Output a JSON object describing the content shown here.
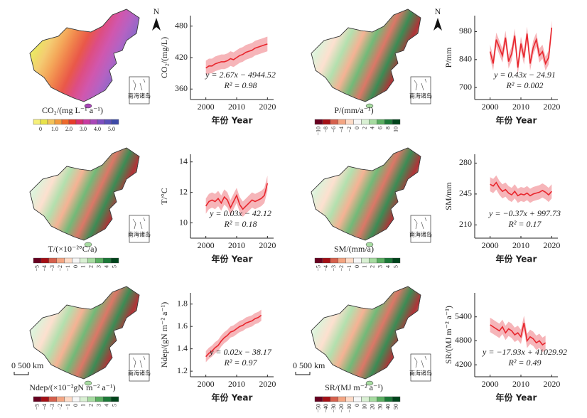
{
  "chart_data": [
    {
      "type": "line",
      "ylabel": "CO₂/(mg/L)",
      "xlabel": "年份 Year",
      "equation": "y = 2.67x − 4944.52",
      "r2": "R² = 0.98",
      "x": [
        2000,
        2001,
        2002,
        2003,
        2004,
        2005,
        2006,
        2007,
        2008,
        2009,
        2010,
        2011,
        2012,
        2013,
        2014,
        2015,
        2016,
        2017,
        2018,
        2019,
        2020
      ],
      "series": [
        {
          "color": "#e8262d",
          "values": [
            400,
            404,
            404,
            408,
            410,
            412,
            412,
            414,
            418,
            416,
            420,
            424,
            426,
            430,
            432,
            434,
            438,
            440,
            442,
            444,
            446
          ]
        }
      ],
      "band_color": "#f4a3a8",
      "band_lower": [
        386,
        390,
        390,
        394,
        396,
        398,
        398,
        400,
        404,
        402,
        406,
        410,
        412,
        416,
        418,
        420,
        424,
        426,
        428,
        430,
        432
      ],
      "band_upper": [
        414,
        418,
        418,
        422,
        424,
        426,
        426,
        428,
        432,
        430,
        434,
        438,
        440,
        444,
        446,
        448,
        452,
        454,
        456,
        458,
        460
      ],
      "xlim": [
        1995,
        2022
      ],
      "xticks": [
        2000,
        2010,
        2020
      ],
      "ylim": [
        340,
        500
      ],
      "yticks": [
        360,
        420,
        480
      ]
    },
    {
      "type": "line",
      "ylabel": "P/mm",
      "xlabel": "年份 Year",
      "equation": "y = 0.43x − 24.91",
      "r2": "R² = 0.002",
      "x": [
        2000,
        2001,
        2002,
        2003,
        2004,
        2005,
        2006,
        2007,
        2008,
        2009,
        2010,
        2011,
        2012,
        2013,
        2014,
        2015,
        2016,
        2017,
        2018,
        2019,
        2020
      ],
      "series": [
        {
          "color": "#e8262d",
          "values": [
            880,
            820,
            940,
            900,
            860,
            950,
            830,
            870,
            960,
            800,
            920,
            850,
            970,
            820,
            900,
            940,
            860,
            880,
            820,
            850,
            1000
          ]
        }
      ],
      "band_color": "#f4a3a8",
      "band_lower": [
        845,
        785,
        905,
        865,
        825,
        915,
        795,
        835,
        925,
        765,
        885,
        815,
        935,
        785,
        865,
        905,
        825,
        845,
        785,
        815,
        965
      ],
      "band_upper": [
        915,
        855,
        975,
        935,
        895,
        985,
        865,
        905,
        995,
        835,
        955,
        885,
        1005,
        855,
        935,
        975,
        895,
        915,
        855,
        885,
        1035
      ],
      "xlim": [
        1995,
        2022
      ],
      "xticks": [
        2000,
        2010,
        2020
      ],
      "ylim": [
        640,
        1060
      ],
      "yticks": [
        700,
        840,
        980
      ]
    },
    {
      "type": "line",
      "ylabel": "T/°C",
      "xlabel": "年份 Year",
      "equation": "y = 0.03x − 42.12",
      "r2": "R² = 0.18",
      "x": [
        2000,
        2001,
        2002,
        2003,
        2004,
        2005,
        2006,
        2007,
        2008,
        2009,
        2010,
        2011,
        2012,
        2013,
        2014,
        2015,
        2016,
        2017,
        2018,
        2019,
        2020
      ],
      "series": [
        {
          "color": "#e8262d",
          "values": [
            11.1,
            11.4,
            11.5,
            11.4,
            11.6,
            11.3,
            11.7,
            11.5,
            11.0,
            11.4,
            11.8,
            11.2,
            10.9,
            11.1,
            11.3,
            11.5,
            11.4,
            11.5,
            11.6,
            11.8,
            12.6
          ]
        }
      ],
      "band_color": "#f4a3a8",
      "band_lower": [
        10.6,
        10.9,
        11.0,
        10.9,
        11.1,
        10.8,
        11.2,
        11.0,
        10.5,
        10.9,
        11.3,
        10.7,
        10.4,
        10.6,
        10.8,
        11.0,
        10.9,
        11.0,
        11.1,
        11.3,
        12.1
      ],
      "band_upper": [
        11.6,
        11.9,
        12.0,
        11.9,
        12.1,
        11.8,
        12.2,
        12.0,
        11.5,
        11.9,
        12.3,
        11.7,
        11.4,
        11.6,
        11.8,
        12.0,
        11.9,
        12.0,
        12.1,
        12.3,
        13.1
      ],
      "xlim": [
        1995,
        2022
      ],
      "xticks": [
        2000,
        2010,
        2020
      ],
      "ylim": [
        9,
        14.5
      ],
      "yticks": [
        10,
        12,
        14
      ]
    },
    {
      "type": "line",
      "ylabel": "SM/mm",
      "xlabel": "年份 Year",
      "equation": "y = −0.37x + 997.73",
      "r2": "R² = 0.17",
      "x": [
        2000,
        2001,
        2002,
        2003,
        2004,
        2005,
        2006,
        2007,
        2008,
        2009,
        2010,
        2011,
        2012,
        2013,
        2014,
        2015,
        2016,
        2017,
        2018,
        2019,
        2020
      ],
      "series": [
        {
          "color": "#e8262d",
          "values": [
            256,
            254,
            258,
            252,
            248,
            250,
            246,
            244,
            248,
            243,
            245,
            244,
            246,
            243,
            245,
            246,
            247,
            249,
            247,
            244,
            248
          ]
        }
      ],
      "band_color": "#f4a3a8",
      "band_lower": [
        248,
        246,
        250,
        244,
        240,
        242,
        238,
        236,
        240,
        235,
        237,
        236,
        238,
        235,
        237,
        238,
        239,
        241,
        239,
        236,
        240
      ],
      "band_upper": [
        264,
        262,
        266,
        260,
        256,
        258,
        254,
        252,
        256,
        251,
        253,
        252,
        254,
        251,
        253,
        254,
        255,
        257,
        255,
        252,
        256
      ],
      "xlim": [
        1995,
        2022
      ],
      "xticks": [
        2000,
        2010,
        2020
      ],
      "ylim": [
        195,
        290
      ],
      "yticks": [
        210,
        245,
        280
      ]
    },
    {
      "type": "line",
      "ylabel": "Ndep/(gN m⁻² a⁻¹)",
      "xlabel": "年份 Year",
      "equation": "y = 0.02x − 38.17",
      "r2": "R² = 0.97",
      "x": [
        2000,
        2001,
        2002,
        2003,
        2004,
        2005,
        2006,
        2007,
        2008,
        2009,
        2010,
        2011,
        2012,
        2013,
        2014,
        2015,
        2016,
        2017,
        2018
      ],
      "series": [
        {
          "color": "#e8262d",
          "values": [
            1.33,
            1.36,
            1.38,
            1.41,
            1.43,
            1.47,
            1.5,
            1.52,
            1.55,
            1.56,
            1.58,
            1.6,
            1.61,
            1.63,
            1.64,
            1.65,
            1.67,
            1.68,
            1.7
          ]
        }
      ],
      "band_color": "#f4a3a8",
      "band_lower": [
        1.28,
        1.31,
        1.33,
        1.36,
        1.38,
        1.42,
        1.45,
        1.47,
        1.5,
        1.51,
        1.53,
        1.55,
        1.56,
        1.58,
        1.59,
        1.6,
        1.62,
        1.63,
        1.65
      ],
      "band_upper": [
        1.38,
        1.41,
        1.43,
        1.46,
        1.48,
        1.52,
        1.55,
        1.57,
        1.6,
        1.61,
        1.63,
        1.65,
        1.66,
        1.68,
        1.69,
        1.7,
        1.72,
        1.73,
        1.75
      ],
      "xlim": [
        1995,
        2022
      ],
      "xticks": [
        2000,
        2010,
        2020
      ],
      "ylim": [
        1.15,
        1.9
      ],
      "yticks": [
        1.2,
        1.4,
        1.6,
        1.8
      ]
    },
    {
      "type": "line",
      "ylabel": "SR/(MJ m⁻² a⁻¹)",
      "xlabel": "年份 Year",
      "equation": "y = −17.93x + 41029.92",
      "r2": "R² = 0.49",
      "x": [
        2000,
        2001,
        2002,
        2003,
        2004,
        2005,
        2006,
        2007,
        2008,
        2009,
        2010,
        2011,
        2012,
        2013,
        2014,
        2015,
        2016,
        2017,
        2018
      ],
      "series": [
        {
          "color": "#e8262d",
          "values": [
            5200,
            5150,
            5100,
            5050,
            5150,
            5000,
            5100,
            5050,
            4950,
            5000,
            4900,
            5250,
            4800,
            4900,
            4850,
            4750,
            4800,
            4700,
            4750
          ]
        }
      ],
      "band_color": "#f4a3a8",
      "band_lower": [
        5020,
        4970,
        4920,
        4870,
        4970,
        4820,
        4920,
        4870,
        4770,
        4820,
        4720,
        5070,
        4620,
        4720,
        4670,
        4570,
        4620,
        4520,
        4570
      ],
      "band_upper": [
        5380,
        5330,
        5280,
        5230,
        5330,
        5180,
        5280,
        5230,
        5130,
        5180,
        5080,
        5430,
        4980,
        5080,
        5030,
        4930,
        4980,
        4880,
        4930
      ],
      "xlim": [
        1995,
        2022
      ],
      "xticks": [
        2000,
        2010,
        2020
      ],
      "ylim": [
        3900,
        6000
      ],
      "yticks": [
        4200,
        4800,
        5400
      ]
    }
  ],
  "maps": [
    {
      "label": "CO₂/(mg L⁻¹ a⁻¹)",
      "north_label": "N",
      "inset_label": "南海诸岛",
      "colors": [
        "#f6f07a",
        "#e8e24a",
        "#f3c35a",
        "#f39a3e",
        "#ee6a2c",
        "#e63b2a",
        "#d82f6e",
        "#c93aa0",
        "#a947b8",
        "#7d4fc0",
        "#5a50b8",
        "#3d4aa8"
      ],
      "ticks": [
        "0",
        "1.0",
        "2.0",
        "3.0",
        "4.0",
        "5.0"
      ]
    },
    {
      "label": "P/(mm/a⁻¹)",
      "north_label": "N",
      "inset_label": "南海诸岛",
      "colors": [
        "#67001f",
        "#a50f15",
        "#d6604d",
        "#f4a582",
        "#fddbc7",
        "#f7f7f7",
        "#d9f0d3",
        "#a6dba0",
        "#5aae61",
        "#1b7837",
        "#00441b"
      ],
      "ticks": [
        "−10",
        "−8",
        "−6",
        "−4",
        "−2",
        "0",
        "2",
        "4",
        "6",
        "8",
        "10"
      ]
    },
    {
      "label": "T/(×10⁻²°C/a)",
      "inset_label": "南海诸岛",
      "colors": [
        "#67001f",
        "#a50f15",
        "#d6604d",
        "#f4a582",
        "#fddbc7",
        "#f7f7f7",
        "#d9f0d3",
        "#a6dba0",
        "#5aae61",
        "#1b7837",
        "#00441b"
      ],
      "ticks": [
        "−5",
        "−4",
        "−3",
        "−2",
        "−1",
        "0",
        "1",
        "2",
        "3",
        "4",
        "5"
      ]
    },
    {
      "label": "SM/(mm/a)",
      "inset_label": "南海诸岛",
      "colors": [
        "#67001f",
        "#a50f15",
        "#d6604d",
        "#f4a582",
        "#fddbc7",
        "#f7f7f7",
        "#d9f0d3",
        "#a6dba0",
        "#5aae61",
        "#1b7837",
        "#00441b"
      ],
      "ticks": [
        "−5",
        "−4",
        "−3",
        "−2",
        "−1",
        "0",
        "1",
        "2",
        "3",
        "4",
        "5"
      ]
    },
    {
      "label": "Ndep/(×10⁻²gN m⁻² a⁻¹)",
      "scale_label": "0  500 km",
      "inset_label": "南海诸岛",
      "colors": [
        "#67001f",
        "#a50f15",
        "#d6604d",
        "#f4a582",
        "#fddbc7",
        "#f7f7f7",
        "#d9f0d3",
        "#a6dba0",
        "#5aae61",
        "#1b7837",
        "#00441b"
      ],
      "ticks": [
        "−5",
        "−4",
        "−3",
        "−2",
        "−1",
        "0",
        "1",
        "2",
        "3",
        "4",
        "5"
      ]
    },
    {
      "label": "SR/(MJ m⁻² a⁻¹)",
      "scale_label": "0  500 km",
      "inset_label": "南海诸岛",
      "colors": [
        "#67001f",
        "#a50f15",
        "#d6604d",
        "#f4a582",
        "#fddbc7",
        "#f7f7f7",
        "#d9f0d3",
        "#a6dba0",
        "#5aae61",
        "#1b7837",
        "#00441b"
      ],
      "ticks": [
        "−50",
        "−40",
        "−30",
        "−20",
        "−10",
        "0",
        "10",
        "20",
        "30",
        "40",
        "50"
      ]
    }
  ]
}
